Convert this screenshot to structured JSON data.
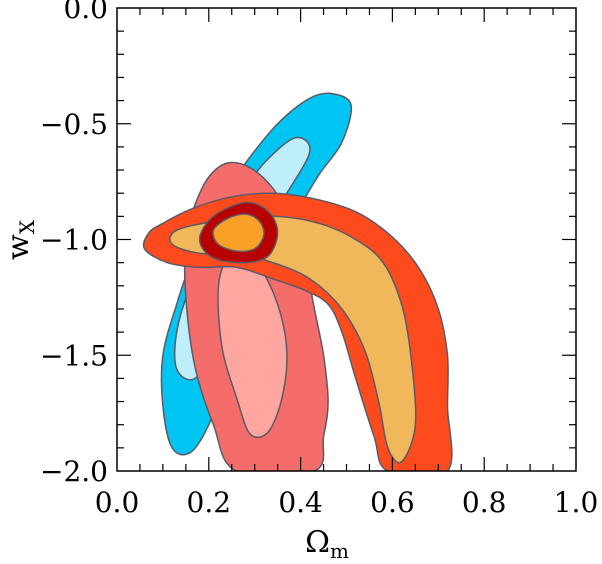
{
  "chart_data": {
    "type": "contour",
    "title": "",
    "xlabel": {
      "main": "Ω",
      "sub": "m"
    },
    "ylabel": {
      "main": "w",
      "sub": "X"
    },
    "xlim": [
      0.0,
      1.0
    ],
    "ylim": [
      -2.0,
      0.0
    ],
    "x_ticks": [
      0.0,
      0.2,
      0.4,
      0.6,
      0.8,
      1.0
    ],
    "x_tick_labels": [
      "0.0",
      "0.2",
      "0.4",
      "0.6",
      "0.8",
      "1.0"
    ],
    "y_ticks": [
      0.0,
      -0.5,
      -1.0,
      -1.5,
      -2.0
    ],
    "y_tick_labels": [
      "0.0",
      "−0.5",
      "−1.0",
      "−1.5",
      "−2.0"
    ],
    "grid": false,
    "legend": "none",
    "colors": {
      "blue_outer": "#00c5f3",
      "blue_inner": "#bfeefb",
      "pink_outer": "#f46d6a",
      "pink_inner": "#ffa6a0",
      "red_outer": "#fd4b1e",
      "orange_inner": "#f0b85b",
      "darkred_outer": "#b80000",
      "orange_core": "#f9a029"
    },
    "series": [
      {
        "id": "blue_outer",
        "points": [
          [
            0.47,
            -0.37
          ],
          [
            0.51,
            -0.42
          ],
          [
            0.49,
            -0.58
          ],
          [
            0.44,
            -0.72
          ],
          [
            0.39,
            -0.88
          ],
          [
            0.34,
            -1.0
          ],
          [
            0.3,
            -1.14
          ],
          [
            0.26,
            -1.34
          ],
          [
            0.24,
            -1.58
          ],
          [
            0.2,
            -1.8
          ],
          [
            0.16,
            -1.92
          ],
          [
            0.12,
            -1.9
          ],
          [
            0.1,
            -1.72
          ],
          [
            0.1,
            -1.5
          ],
          [
            0.13,
            -1.28
          ],
          [
            0.17,
            -1.05
          ],
          [
            0.22,
            -0.85
          ],
          [
            0.28,
            -0.67
          ],
          [
            0.35,
            -0.5
          ],
          [
            0.42,
            -0.39
          ]
        ]
      },
      {
        "id": "blue_inner",
        "points": [
          [
            0.39,
            -0.56
          ],
          [
            0.42,
            -0.62
          ],
          [
            0.37,
            -0.8
          ],
          [
            0.31,
            -0.98
          ],
          [
            0.26,
            -1.18
          ],
          [
            0.21,
            -1.45
          ],
          [
            0.17,
            -1.6
          ],
          [
            0.13,
            -1.56
          ],
          [
            0.13,
            -1.4
          ],
          [
            0.16,
            -1.2
          ],
          [
            0.21,
            -0.99
          ],
          [
            0.27,
            -0.8
          ],
          [
            0.33,
            -0.65
          ]
        ]
      },
      {
        "id": "pink_outer",
        "points": [
          [
            0.24,
            -0.67
          ],
          [
            0.29,
            -0.69
          ],
          [
            0.34,
            -0.78
          ],
          [
            0.38,
            -0.92
          ],
          [
            0.41,
            -1.1
          ],
          [
            0.43,
            -1.3
          ],
          [
            0.45,
            -1.5
          ],
          [
            0.46,
            -1.7
          ],
          [
            0.45,
            -1.85
          ],
          [
            0.43,
            -2.0
          ],
          [
            0.26,
            -2.0
          ],
          [
            0.21,
            -1.8
          ],
          [
            0.17,
            -1.55
          ],
          [
            0.15,
            -1.25
          ],
          [
            0.15,
            -1.0
          ],
          [
            0.17,
            -0.85
          ],
          [
            0.2,
            -0.73
          ]
        ]
      },
      {
        "id": "pink_inner",
        "points": [
          [
            0.26,
            -1.06
          ],
          [
            0.31,
            -1.12
          ],
          [
            0.35,
            -1.28
          ],
          [
            0.37,
            -1.48
          ],
          [
            0.36,
            -1.68
          ],
          [
            0.33,
            -1.83
          ],
          [
            0.29,
            -1.84
          ],
          [
            0.26,
            -1.68
          ],
          [
            0.23,
            -1.48
          ],
          [
            0.22,
            -1.25
          ],
          [
            0.23,
            -1.12
          ]
        ]
      },
      {
        "id": "red_outer",
        "points": [
          [
            0.1,
            -0.93
          ],
          [
            0.16,
            -0.87
          ],
          [
            0.24,
            -0.82
          ],
          [
            0.33,
            -0.8
          ],
          [
            0.42,
            -0.82
          ],
          [
            0.52,
            -0.88
          ],
          [
            0.6,
            -0.99
          ],
          [
            0.66,
            -1.13
          ],
          [
            0.7,
            -1.3
          ],
          [
            0.72,
            -1.5
          ],
          [
            0.72,
            -1.72
          ],
          [
            0.72,
            -2.0
          ],
          [
            0.59,
            -2.0
          ],
          [
            0.56,
            -1.85
          ],
          [
            0.52,
            -1.6
          ],
          [
            0.49,
            -1.4
          ],
          [
            0.46,
            -1.28
          ],
          [
            0.41,
            -1.22
          ],
          [
            0.34,
            -1.17
          ],
          [
            0.26,
            -1.12
          ],
          [
            0.18,
            -1.12
          ],
          [
            0.11,
            -1.1
          ],
          [
            0.06,
            -1.04
          ],
          [
            0.07,
            -0.97
          ]
        ]
      },
      {
        "id": "orange_inner",
        "points": [
          [
            0.13,
            -0.96
          ],
          [
            0.22,
            -0.92
          ],
          [
            0.34,
            -0.9
          ],
          [
            0.44,
            -0.93
          ],
          [
            0.52,
            -1.0
          ],
          [
            0.58,
            -1.1
          ],
          [
            0.62,
            -1.28
          ],
          [
            0.64,
            -1.5
          ],
          [
            0.65,
            -1.8
          ],
          [
            0.62,
            -1.96
          ],
          [
            0.59,
            -1.9
          ],
          [
            0.57,
            -1.7
          ],
          [
            0.54,
            -1.48
          ],
          [
            0.49,
            -1.3
          ],
          [
            0.42,
            -1.17
          ],
          [
            0.34,
            -1.1
          ],
          [
            0.26,
            -1.06
          ],
          [
            0.18,
            -1.06
          ],
          [
            0.12,
            -1.02
          ]
        ]
      },
      {
        "id": "darkred_outer",
        "points": [
          [
            0.28,
            -0.84
          ],
          [
            0.33,
            -0.88
          ],
          [
            0.35,
            -0.97
          ],
          [
            0.33,
            -1.07
          ],
          [
            0.28,
            -1.1
          ],
          [
            0.21,
            -1.08
          ],
          [
            0.18,
            -1.0
          ],
          [
            0.21,
            -0.9
          ]
        ]
      },
      {
        "id": "orange_core",
        "points": [
          [
            0.28,
            -0.89
          ],
          [
            0.31,
            -0.92
          ],
          [
            0.32,
            -0.98
          ],
          [
            0.3,
            -1.04
          ],
          [
            0.26,
            -1.05
          ],
          [
            0.22,
            -1.02
          ],
          [
            0.21,
            -0.96
          ],
          [
            0.24,
            -0.91
          ]
        ]
      }
    ]
  }
}
